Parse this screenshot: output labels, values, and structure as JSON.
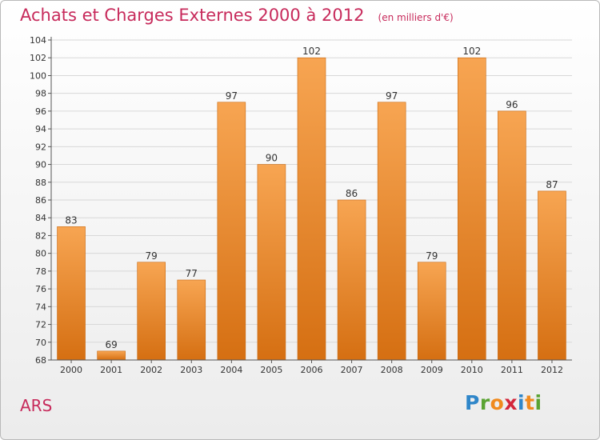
{
  "header": {
    "title": "Achats et Charges Externes 2000 à 2012",
    "subtitle": "(en milliers d'€)"
  },
  "footer": {
    "location": "ARS"
  },
  "logo": {
    "letters": [
      {
        "ch": "P",
        "color": "#2f86c9"
      },
      {
        "ch": "r",
        "color": "#5aa332"
      },
      {
        "ch": "o",
        "color": "#f08a1e"
      },
      {
        "ch": "x",
        "color": "#d3263b"
      },
      {
        "ch": "i",
        "color": "#2f86c9"
      },
      {
        "ch": "t",
        "color": "#f08a1e"
      },
      {
        "ch": "i",
        "color": "#5aa332"
      }
    ]
  },
  "chart_data": {
    "type": "bar",
    "categories": [
      "2000",
      "2001",
      "2002",
      "2003",
      "2004",
      "2005",
      "2006",
      "2007",
      "2008",
      "2009",
      "2010",
      "2011",
      "2012"
    ],
    "values": [
      83,
      69,
      79,
      77,
      97,
      90,
      102,
      86,
      97,
      79,
      102,
      96,
      87
    ],
    "title": "Achats et Charges Externes 2000 à 2012",
    "subtitle": "(en milliers d'€)",
    "ylim": [
      68,
      104
    ],
    "yticks": [
      68,
      70,
      72,
      74,
      76,
      78,
      80,
      82,
      84,
      86,
      88,
      90,
      92,
      94,
      96,
      98,
      100,
      102,
      104
    ],
    "grid": true,
    "data_labels": true,
    "colors": {
      "bar_top": "#f7a552",
      "bar_bottom": "#d56f12",
      "title": "#c72a5b",
      "grid": "#d8d8d8"
    }
  }
}
